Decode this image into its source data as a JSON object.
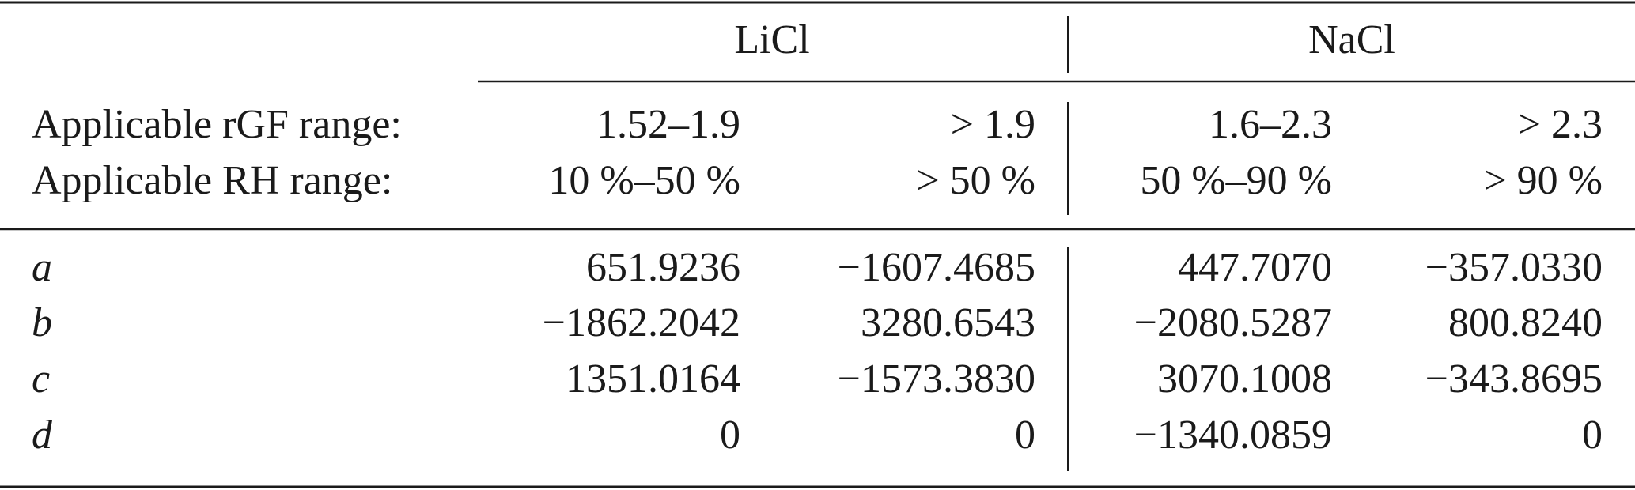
{
  "table": {
    "groups": [
      "LiCl",
      "NaCl"
    ],
    "range_rows": [
      {
        "label": "Applicable rGF range:",
        "cells": [
          "1.52–1.9",
          "> 1.9",
          "1.6–2.3",
          "> 2.3"
        ]
      },
      {
        "label": "Applicable RH range:",
        "cells": [
          "10 %–50 %",
          "> 50 %",
          "50 %–90 %",
          "> 90 %"
        ]
      }
    ],
    "rows": [
      {
        "label": "a",
        "cells": [
          "651.9236",
          "−1607.4685",
          "447.7070",
          "−357.0330"
        ]
      },
      {
        "label": "b",
        "cells": [
          "−1862.2042",
          "3280.6543",
          "−2080.5287",
          "800.8240"
        ]
      },
      {
        "label": "c",
        "cells": [
          "1351.0164",
          "−1573.3830",
          "3070.1008",
          "−343.8695"
        ]
      },
      {
        "label": "d",
        "cells": [
          "0",
          "0",
          "−1340.0859",
          "0"
        ]
      }
    ]
  }
}
